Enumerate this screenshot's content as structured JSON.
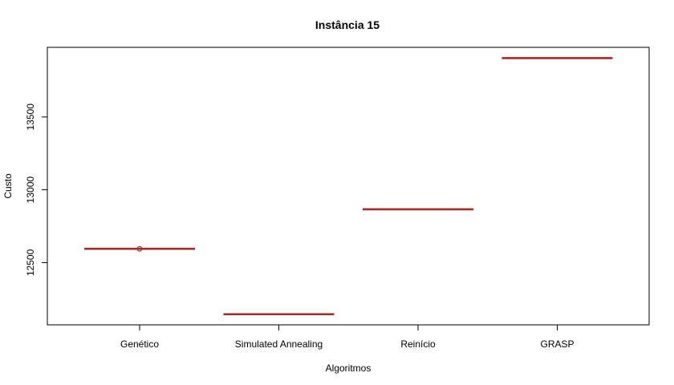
{
  "chart_data": {
    "type": "boxplot",
    "title": "Instância 15",
    "xlabel": "Algoritmos",
    "ylabel": "Custo",
    "categories": [
      "Genético",
      "Simulated Annealing",
      "Reinício",
      "GRASP"
    ],
    "values": [
      12595,
      12146,
      12866,
      13904
    ],
    "outliers": [
      {
        "category": "Genético",
        "value": 12595
      }
    ],
    "y_ticks": [
      12500,
      13000,
      13500
    ],
    "ylim": [
      12073,
      13978
    ],
    "grid": false,
    "legend": "none",
    "colors": {
      "median": "#a52a2a",
      "axis": "#000000",
      "background": "#ffffff"
    }
  }
}
